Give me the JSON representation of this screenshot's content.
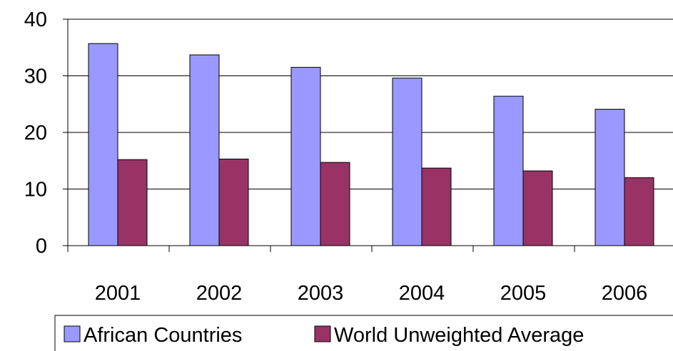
{
  "chart_data": {
    "type": "bar",
    "title": "",
    "xlabel": "",
    "ylabel": "",
    "categories": [
      "2001",
      "2002",
      "2003",
      "2004",
      "2005",
      "2006"
    ],
    "series": [
      {
        "name": "African Countries",
        "values": [
          35.7,
          33.7,
          31.5,
          29.6,
          26.4,
          24.1
        ],
        "color": "#9999ff"
      },
      {
        "name": "World Unweighted Average",
        "values": [
          15.2,
          15.3,
          14.7,
          13.7,
          13.2,
          12.0
        ],
        "color": "#993366"
      }
    ],
    "ylim": [
      0,
      40
    ],
    "yticks": [
      "0",
      "10",
      "20",
      "30",
      "40"
    ],
    "grid": true,
    "legend_position": "bottom"
  }
}
